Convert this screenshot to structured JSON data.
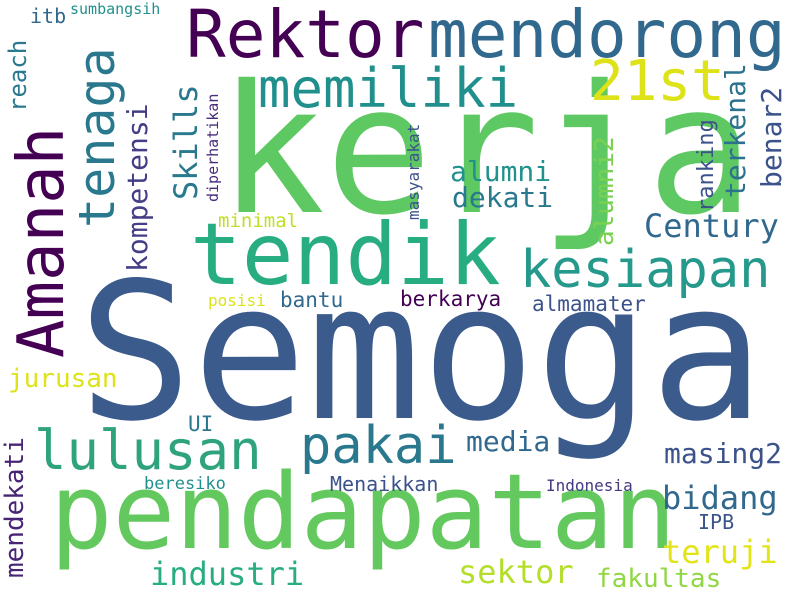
{
  "palette": {
    "dark_purple": "#440154",
    "slate_blue": "#3b528b",
    "teal_blue": "#31688e",
    "teal": "#21908d",
    "green_teal": "#27ad81",
    "green": "#5ec962",
    "lime": "#addc30",
    "yellow": "#fde725"
  },
  "words": {
    "semoga": "Semoga",
    "kerja": "kerja",
    "pendapatan": "pendapatan",
    "tendik": "tendik",
    "amanah": "Amanah",
    "rektor": "Rektor",
    "mendorong": "mendorong",
    "memiliki": "memiliki",
    "tenaga": "tenaga",
    "kesiapan": "kesiapan",
    "lulusan": "lulusan",
    "pakai": "pakai",
    "w21st": "21st",
    "century": "Century",
    "skills": "Skills",
    "kompetensi": "kompetensi",
    "industri": "industri",
    "sektor": "sektor",
    "jurusan": "jurusan",
    "media": "media",
    "masing2": "masing2",
    "bidang": "bidang",
    "teruji": "teruji",
    "fakultas": "fakultas",
    "alumni": "alumni",
    "dekati": "dekati",
    "alumni2": "alumni2",
    "terkenal": "terkenal",
    "benar2": "benar2",
    "ranking": "ranking",
    "mendekati": "mendekati",
    "reach": "reach",
    "itb": "itb",
    "sumbangsih": "sumbangsih",
    "diperhatikan": "diperhatikan",
    "minimal": "minimal",
    "masyarakat": "masyarakat",
    "posisi": "posisi",
    "bantu": "bantu",
    "berkarya": "berkarya",
    "almamater": "almamater",
    "ui": "UI",
    "beresiko": "beresiko",
    "menaikkan": "Menaikkan",
    "indonesia": "Indonesia",
    "ipb": "IPB"
  }
}
